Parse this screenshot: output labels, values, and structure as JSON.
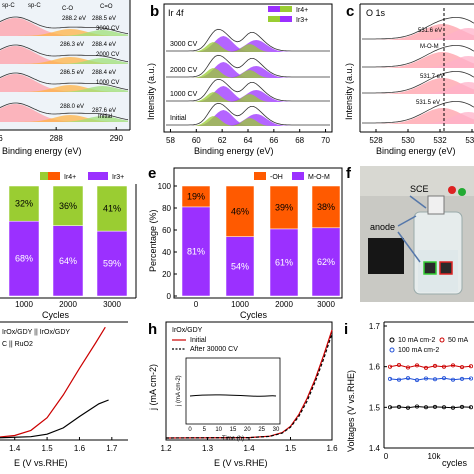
{
  "colors": {
    "ir4": "#9acd32",
    "ir3": "#9b30ff",
    "oh": "#ff5a00",
    "mom": "#9b30ff",
    "initial_line": "#cc0000",
    "cv_line": "#000000",
    "panel_i_series": [
      "#000000",
      "#cc0000",
      "#1f4fd8"
    ]
  },
  "panels": {
    "b": {
      "letter": "b",
      "title": "Ir 4f",
      "legend": [
        "Ir4+",
        "Ir3+"
      ],
      "rows": [
        "3000 CV",
        "2000 CV",
        "1000 CV",
        "Initial"
      ]
    },
    "c": {
      "letter": "c",
      "title": "O 1s",
      "ann": [
        "M-O-M",
        "531.6 eV",
        "531.7 eV",
        "531.5 eV"
      ]
    },
    "a": {
      "labels": [
        "sp-C",
        "C-O",
        "C=O",
        "3000 CV",
        "2000 CV",
        "1000 CV",
        "Initial"
      ],
      "ann": [
        "288.2 eV",
        "288.5 eV",
        "286.3 eV",
        "288.4 eV",
        "286.5 eV",
        "288.4 eV",
        "288.0 eV",
        "287.6 eV"
      ]
    },
    "d": {
      "legend": [
        "Ir4+",
        "Ir3+"
      ]
    },
    "e": {
      "letter": "e"
    },
    "f": {
      "letter": "f",
      "sce": "SCE",
      "anode": "anode"
    },
    "g": {
      "legend": [
        "IrOx/GDY || IrOx/GDY",
        "C || RuO2"
      ]
    },
    "h": {
      "letter": "h",
      "legend_title": "IrOx/GDY",
      "legend": [
        "Initial",
        "After 30000 CV"
      ]
    },
    "i": {
      "letter": "i",
      "legend": [
        "10 mA cm-2",
        "50 mA",
        "100 mA cm-2"
      ]
    }
  },
  "chart_data": [
    {
      "id": "a",
      "type": "line",
      "title": "",
      "xlabel": "Binding energy (eV)",
      "ylabel": "",
      "xlim": [
        284,
        291
      ],
      "xticks": [
        286,
        288,
        290
      ],
      "xtick_labels": [
        "286",
        "288",
        "290"
      ],
      "series": [
        "3000 CV",
        "2000 CV",
        "1000 CV",
        "Initial"
      ],
      "peak_labels": [
        "sp-C",
        "C-O",
        "C=O"
      ]
    },
    {
      "id": "b",
      "type": "line",
      "title": "Ir 4f",
      "xlabel": "Binding energy (eV)",
      "ylabel": "Intensity (a.u.)",
      "xlim": [
        57.5,
        70.5
      ],
      "xticks": [
        58,
        60,
        62,
        64,
        66,
        68,
        70
      ],
      "xtick_labels": [
        "58",
        "60",
        "62",
        "64",
        "66",
        "68",
        "70"
      ],
      "series": [
        "3000 CV",
        "2000 CV",
        "1000 CV",
        "Initial"
      ],
      "peaks": [
        62.0,
        64.8
      ]
    },
    {
      "id": "c",
      "type": "line",
      "title": "O 1s",
      "xlabel": "Binding energy (eV)",
      "ylabel": "Intensity (a.u.)",
      "xlim": [
        527,
        535
      ],
      "xticks": [
        528,
        530,
        532,
        534
      ],
      "xtick_labels": [
        "528",
        "530",
        "532",
        "534"
      ],
      "peaks": [
        531.6,
        531.7,
        531.5
      ]
    },
    {
      "id": "d",
      "type": "bar",
      "title": "",
      "xlabel": "Cycles",
      "ylabel": "",
      "categories": [
        "1000",
        "2000",
        "3000"
      ],
      "series": [
        {
          "name": "Ir3+",
          "values": [
            68,
            64,
            59
          ]
        },
        {
          "name": "Ir4+",
          "values": [
            32,
            36,
            41
          ]
        }
      ],
      "labels_top": [
        "32%",
        "36%",
        "41%"
      ],
      "labels_bottom": [
        "68%",
        "64%",
        "59%"
      ]
    },
    {
      "id": "e",
      "type": "bar",
      "title": "",
      "xlabel": "Cycles",
      "ylabel": "Percentage (%)",
      "categories": [
        "0",
        "1000",
        "2000",
        "3000"
      ],
      "ylim": [
        0,
        100
      ],
      "yticks": [
        0,
        20,
        40,
        60,
        80,
        100
      ],
      "series": [
        {
          "name": "M-O-M",
          "values": [
            81,
            54,
            61,
            62
          ]
        },
        {
          "name": "-OH",
          "values": [
            19,
            46,
            39,
            38
          ]
        }
      ],
      "labels_top": [
        "19%",
        "46%",
        "39%",
        "38%"
      ],
      "labels_bottom": [
        "81%",
        "54%",
        "61%",
        "62%"
      ]
    },
    {
      "id": "g",
      "type": "line",
      "title": "",
      "xlabel": "E (V vs.RHE)",
      "ylabel": "",
      "xlim": [
        1.2,
        1.75
      ],
      "xticks": [
        1.3,
        1.4,
        1.5,
        1.6,
        1.7
      ],
      "xtick_labels": [
        "1.3",
        "1.4",
        "1.5",
        "1.6",
        "1.7"
      ],
      "series": [
        {
          "name": "IrOx/GDY || IrOx/GDY",
          "x": [
            1.22,
            1.3,
            1.35,
            1.4,
            1.45,
            1.5,
            1.55,
            1.6,
            1.65,
            1.68
          ],
          "y": [
            0,
            0.5,
            1.5,
            4,
            12,
            32,
            68,
            110,
            150,
            175
          ]
        },
        {
          "name": "C || RuO2",
          "x": [
            1.22,
            1.35,
            1.45,
            1.5,
            1.55,
            1.6,
            1.63,
            1.66,
            1.69
          ],
          "y": [
            0,
            0.3,
            2,
            6,
            16,
            34,
            44,
            54,
            60
          ]
        }
      ]
    },
    {
      "id": "h",
      "type": "line",
      "title": "",
      "xlabel": "E (V vs.RHE)",
      "ylabel": "j (mA cm-2)",
      "xlim": [
        1.2,
        1.6
      ],
      "xticks": [
        1.2,
        1.3,
        1.4,
        1.5,
        1.6
      ],
      "xtick_labels": [
        "1.2",
        "1.3",
        "1.4",
        "1.5",
        "1.6"
      ],
      "series": [
        {
          "name": "Initial",
          "x": [
            1.2,
            1.4,
            1.45,
            1.48,
            1.5,
            1.52,
            1.54,
            1.56,
            1.58,
            1.6
          ],
          "y": [
            0,
            0.5,
            2,
            6,
            13,
            26,
            44,
            66,
            92,
            120
          ]
        },
        {
          "name": "After 30000 CV",
          "x": [
            1.2,
            1.4,
            1.45,
            1.48,
            1.5,
            1.52,
            1.54,
            1.56,
            1.58,
            1.6
          ],
          "y": [
            0,
            0.4,
            1.8,
            5.5,
            12,
            24,
            41,
            63,
            88,
            116
          ]
        }
      ],
      "inset": {
        "xlabel": "Time (h)",
        "ylabel": "j (mA cm-2)",
        "xticks": [
          0,
          5,
          10,
          15,
          20,
          25,
          30
        ],
        "x": [
          0,
          30
        ],
        "y": [
          10,
          10
        ]
      }
    },
    {
      "id": "i",
      "type": "line",
      "title": "",
      "xlabel": "cycles",
      "ylabel": "Voltages (V vs.RHE)",
      "ylim": [
        1.4,
        1.7
      ],
      "yticks": [
        1.4,
        1.5,
        1.6,
        1.7
      ],
      "ytick_labels": [
        "1.4",
        "1.5",
        "1.6",
        "1.7"
      ],
      "xticks": [
        0,
        10000
      ],
      "xtick_labels": [
        "0",
        "10k"
      ],
      "series": [
        {
          "name": "10 mA cm-2",
          "y": [
            1.5,
            1.501,
            1.499,
            1.502,
            1.5,
            1.501,
            1.5,
            1.499,
            1.501,
            1.5
          ]
        },
        {
          "name": "50 mA",
          "y": [
            1.6,
            1.604,
            1.598,
            1.603,
            1.597,
            1.602,
            1.6,
            1.603,
            1.599,
            1.601
          ]
        },
        {
          "name": "100 mA cm-2",
          "y": [
            1.57,
            1.568,
            1.572,
            1.567,
            1.571,
            1.569,
            1.572,
            1.568,
            1.57,
            1.571
          ]
        }
      ]
    }
  ]
}
